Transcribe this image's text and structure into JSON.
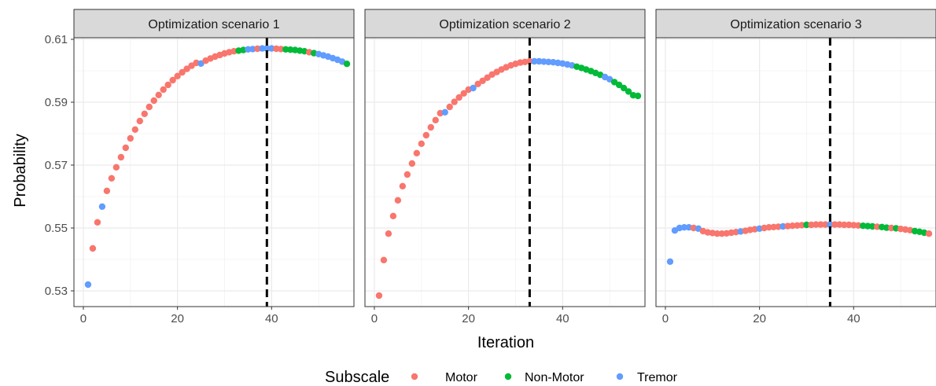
{
  "chart_data": {
    "type": "scatter",
    "xlabel": "Iteration",
    "ylabel": "Probability",
    "xlim": [
      -2,
      57.5
    ],
    "ylim": [
      0.525,
      0.6105
    ],
    "x_ticks": [
      0,
      20,
      40
    ],
    "x_tick_labels": [
      "0",
      "20",
      "40"
    ],
    "y_ticks": [
      0.53,
      0.55,
      0.57,
      0.59,
      0.61
    ],
    "y_tick_labels": [
      "0.53",
      "0.55",
      "0.57",
      "0.59",
      "0.61"
    ],
    "grid": true,
    "legend": {
      "title": "Subscale",
      "position": "bottom",
      "entries": [
        {
          "name": "Motor",
          "color": "#F8766D"
        },
        {
          "name": "Non-Motor",
          "color": "#00BA38"
        },
        {
          "name": "Tremor",
          "color": "#619CFF"
        }
      ]
    },
    "panels": [
      {
        "title": "Optimization scenario 1",
        "vline": 39,
        "points": [
          [
            1,
            0.532,
            "Tremor"
          ],
          [
            2,
            0.5435,
            "Motor"
          ],
          [
            3,
            0.5518,
            "Motor"
          ],
          [
            4,
            0.5568,
            "Tremor"
          ],
          [
            5,
            0.5618,
            "Motor"
          ],
          [
            6,
            0.5658,
            "Motor"
          ],
          [
            7,
            0.5693,
            "Motor"
          ],
          [
            8,
            0.5725,
            "Motor"
          ],
          [
            9,
            0.5755,
            "Motor"
          ],
          [
            10,
            0.5785,
            "Motor"
          ],
          [
            11,
            0.5813,
            "Motor"
          ],
          [
            12,
            0.584,
            "Motor"
          ],
          [
            13,
            0.5863,
            "Motor"
          ],
          [
            14,
            0.5885,
            "Motor"
          ],
          [
            15,
            0.5905,
            "Motor"
          ],
          [
            16,
            0.5923,
            "Motor"
          ],
          [
            17,
            0.594,
            "Motor"
          ],
          [
            18,
            0.5955,
            "Motor"
          ],
          [
            19,
            0.597,
            "Motor"
          ],
          [
            20,
            0.5983,
            "Motor"
          ],
          [
            21,
            0.5995,
            "Motor"
          ],
          [
            22,
            0.6006,
            "Motor"
          ],
          [
            23,
            0.6016,
            "Motor"
          ],
          [
            24,
            0.6025,
            "Motor"
          ],
          [
            25,
            0.6023,
            "Tremor"
          ],
          [
            26,
            0.6032,
            "Motor"
          ],
          [
            27,
            0.6039,
            "Motor"
          ],
          [
            28,
            0.6045,
            "Motor"
          ],
          [
            29,
            0.605,
            "Motor"
          ],
          [
            30,
            0.6055,
            "Motor"
          ],
          [
            31,
            0.6059,
            "Motor"
          ],
          [
            32,
            0.6062,
            "Motor"
          ],
          [
            33,
            0.6064,
            "Non-Motor"
          ],
          [
            34,
            0.6066,
            "Non-Motor"
          ],
          [
            35,
            0.6068,
            "Tremor"
          ],
          [
            36,
            0.6069,
            "Tremor"
          ],
          [
            37,
            0.607,
            "Motor"
          ],
          [
            38,
            0.6071,
            "Tremor"
          ],
          [
            39,
            0.6071,
            "Tremor"
          ],
          [
            40,
            0.6071,
            "Tremor"
          ],
          [
            41,
            0.607,
            "Motor"
          ],
          [
            42,
            0.6069,
            "Motor"
          ],
          [
            43,
            0.6068,
            "Non-Motor"
          ],
          [
            44,
            0.6067,
            "Non-Motor"
          ],
          [
            45,
            0.6066,
            "Non-Motor"
          ],
          [
            46,
            0.6064,
            "Non-Motor"
          ],
          [
            47,
            0.6062,
            "Non-Motor"
          ],
          [
            48,
            0.6059,
            "Motor"
          ],
          [
            49,
            0.6056,
            "Non-Motor"
          ],
          [
            50,
            0.6053,
            "Tremor"
          ],
          [
            51,
            0.6049,
            "Tremor"
          ],
          [
            52,
            0.6045,
            "Tremor"
          ],
          [
            53,
            0.604,
            "Tremor"
          ],
          [
            54,
            0.6035,
            "Tremor"
          ],
          [
            55,
            0.6029,
            "Tremor"
          ],
          [
            56,
            0.6022,
            "Non-Motor"
          ]
        ]
      },
      {
        "title": "Optimization scenario 2",
        "vline": 33,
        "points": [
          [
            1,
            0.5285,
            "Motor"
          ],
          [
            2,
            0.5398,
            "Motor"
          ],
          [
            3,
            0.5482,
            "Motor"
          ],
          [
            4,
            0.5538,
            "Motor"
          ],
          [
            5,
            0.5588,
            "Motor"
          ],
          [
            6,
            0.5633,
            "Motor"
          ],
          [
            7,
            0.567,
            "Motor"
          ],
          [
            8,
            0.5705,
            "Motor"
          ],
          [
            9,
            0.5738,
            "Motor"
          ],
          [
            10,
            0.5768,
            "Motor"
          ],
          [
            11,
            0.5795,
            "Motor"
          ],
          [
            12,
            0.582,
            "Motor"
          ],
          [
            13,
            0.5843,
            "Motor"
          ],
          [
            14,
            0.5865,
            "Motor"
          ],
          [
            15,
            0.5868,
            "Tremor"
          ],
          [
            16,
            0.5885,
            "Motor"
          ],
          [
            17,
            0.5901,
            "Motor"
          ],
          [
            18,
            0.5915,
            "Motor"
          ],
          [
            19,
            0.5928,
            "Motor"
          ],
          [
            20,
            0.594,
            "Motor"
          ],
          [
            21,
            0.5945,
            "Tremor"
          ],
          [
            22,
            0.5958,
            "Motor"
          ],
          [
            23,
            0.5968,
            "Motor"
          ],
          [
            24,
            0.5978,
            "Motor"
          ],
          [
            25,
            0.5988,
            "Motor"
          ],
          [
            26,
            0.5996,
            "Motor"
          ],
          [
            27,
            0.6004,
            "Motor"
          ],
          [
            28,
            0.6011,
            "Motor"
          ],
          [
            29,
            0.6017,
            "Motor"
          ],
          [
            30,
            0.6022,
            "Motor"
          ],
          [
            31,
            0.6026,
            "Motor"
          ],
          [
            32,
            0.6028,
            "Motor"
          ],
          [
            33,
            0.603,
            "Motor"
          ],
          [
            34,
            0.603,
            "Tremor"
          ],
          [
            35,
            0.603,
            "Tremor"
          ],
          [
            36,
            0.6029,
            "Tremor"
          ],
          [
            37,
            0.6028,
            "Tremor"
          ],
          [
            38,
            0.6027,
            "Tremor"
          ],
          [
            39,
            0.6025,
            "Tremor"
          ],
          [
            40,
            0.6023,
            "Tremor"
          ],
          [
            41,
            0.602,
            "Tremor"
          ],
          [
            42,
            0.6017,
            "Tremor"
          ],
          [
            43,
            0.6013,
            "Non-Motor"
          ],
          [
            44,
            0.6009,
            "Non-Motor"
          ],
          [
            45,
            0.6004,
            "Non-Motor"
          ],
          [
            46,
            0.5999,
            "Non-Motor"
          ],
          [
            47,
            0.5993,
            "Non-Motor"
          ],
          [
            48,
            0.5987,
            "Non-Motor"
          ],
          [
            49,
            0.598,
            "Tremor"
          ],
          [
            50,
            0.5973,
            "Tremor"
          ],
          [
            51,
            0.5964,
            "Non-Motor"
          ],
          [
            52,
            0.5955,
            "Non-Motor"
          ],
          [
            53,
            0.5945,
            "Non-Motor"
          ],
          [
            54,
            0.5934,
            "Non-Motor"
          ],
          [
            55,
            0.5922,
            "Non-Motor"
          ],
          [
            56,
            0.592,
            "Non-Motor"
          ]
        ]
      },
      {
        "title": "Optimization scenario 3",
        "vline": 35,
        "points": [
          [
            1,
            0.5393,
            "Tremor"
          ],
          [
            2,
            0.5492,
            "Tremor"
          ],
          [
            3,
            0.55,
            "Tremor"
          ],
          [
            4,
            0.5502,
            "Tremor"
          ],
          [
            5,
            0.5502,
            "Tremor"
          ],
          [
            6,
            0.55,
            "Motor"
          ],
          [
            7,
            0.5498,
            "Tremor"
          ],
          [
            8,
            0.549,
            "Motor"
          ],
          [
            9,
            0.5486,
            "Motor"
          ],
          [
            10,
            0.5484,
            "Motor"
          ],
          [
            11,
            0.5482,
            "Motor"
          ],
          [
            12,
            0.5482,
            "Motor"
          ],
          [
            13,
            0.5483,
            "Motor"
          ],
          [
            14,
            0.5485,
            "Motor"
          ],
          [
            15,
            0.5487,
            "Motor"
          ],
          [
            16,
            0.5489,
            "Tremor"
          ],
          [
            17,
            0.5491,
            "Motor"
          ],
          [
            18,
            0.5494,
            "Motor"
          ],
          [
            19,
            0.5496,
            "Motor"
          ],
          [
            20,
            0.5498,
            "Tremor"
          ],
          [
            21,
            0.55,
            "Motor"
          ],
          [
            22,
            0.5502,
            "Motor"
          ],
          [
            23,
            0.5503,
            "Motor"
          ],
          [
            24,
            0.5504,
            "Motor"
          ],
          [
            25,
            0.5505,
            "Tremor"
          ],
          [
            26,
            0.5506,
            "Motor"
          ],
          [
            27,
            0.5507,
            "Motor"
          ],
          [
            28,
            0.5508,
            "Motor"
          ],
          [
            29,
            0.5509,
            "Motor"
          ],
          [
            30,
            0.551,
            "Non-Motor"
          ],
          [
            31,
            0.551,
            "Motor"
          ],
          [
            32,
            0.5511,
            "Motor"
          ],
          [
            33,
            0.5511,
            "Motor"
          ],
          [
            34,
            0.5511,
            "Motor"
          ],
          [
            35,
            0.5511,
            "Tremor"
          ],
          [
            36,
            0.5511,
            "Motor"
          ],
          [
            37,
            0.5511,
            "Motor"
          ],
          [
            38,
            0.551,
            "Motor"
          ],
          [
            39,
            0.551,
            "Motor"
          ],
          [
            40,
            0.5509,
            "Motor"
          ],
          [
            41,
            0.5508,
            "Motor"
          ],
          [
            42,
            0.5507,
            "Non-Motor"
          ],
          [
            43,
            0.5506,
            "Non-Motor"
          ],
          [
            44,
            0.5505,
            "Non-Motor"
          ],
          [
            45,
            0.5504,
            "Motor"
          ],
          [
            46,
            0.5503,
            "Non-Motor"
          ],
          [
            47,
            0.5501,
            "Non-Motor"
          ],
          [
            48,
            0.55,
            "Motor"
          ],
          [
            49,
            0.5499,
            "Non-Motor"
          ],
          [
            50,
            0.5497,
            "Motor"
          ],
          [
            51,
            0.5495,
            "Motor"
          ],
          [
            52,
            0.5493,
            "Motor"
          ],
          [
            53,
            0.549,
            "Non-Motor"
          ],
          [
            54,
            0.5488,
            "Non-Motor"
          ],
          [
            55,
            0.5485,
            "Non-Motor"
          ],
          [
            56,
            0.5482,
            "Motor"
          ]
        ]
      }
    ]
  }
}
